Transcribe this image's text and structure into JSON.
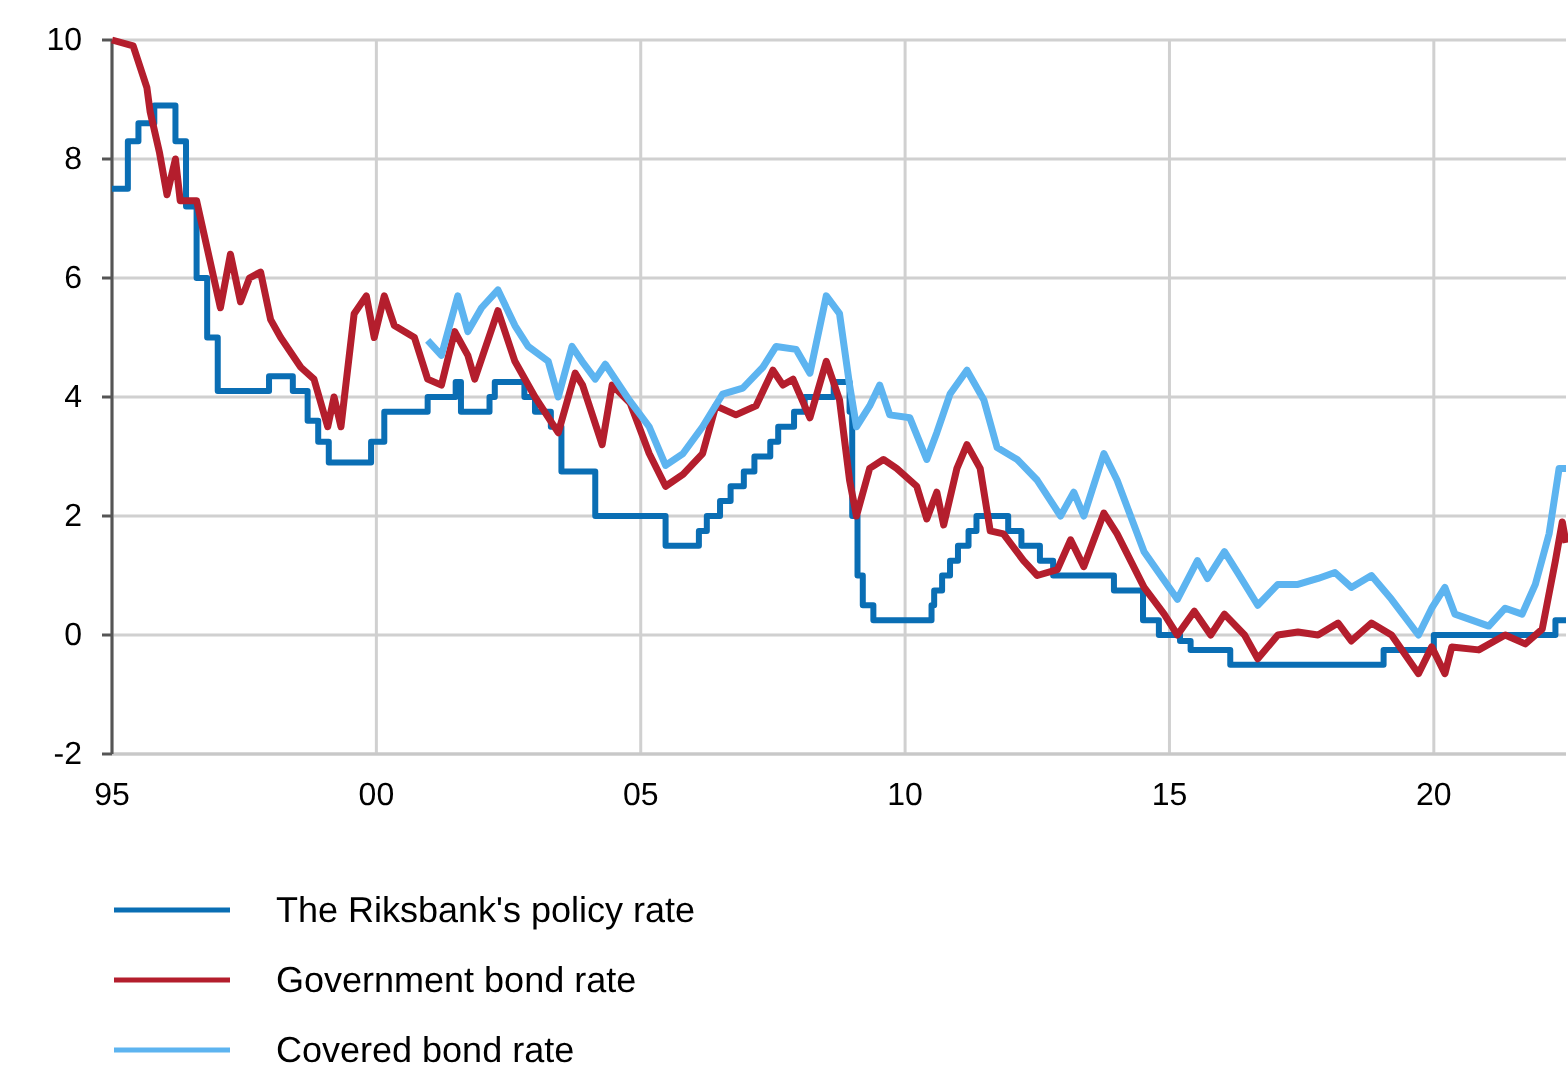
{
  "chart_data": {
    "type": "line",
    "xlim": [
      1995,
      2022.5
    ],
    "xticks": [
      {
        "value": 1995,
        "label": "95"
      },
      {
        "value": 2000,
        "label": "00"
      },
      {
        "value": 2005,
        "label": "05"
      },
      {
        "value": 2010,
        "label": "10"
      },
      {
        "value": 2015,
        "label": "15"
      },
      {
        "value": 2020,
        "label": "20"
      }
    ],
    "ylim": [
      -2,
      10
    ],
    "yticks": [
      -2,
      0,
      2,
      4,
      6,
      8,
      10
    ],
    "grid": true,
    "legend": "bottom",
    "line_style": "solid",
    "series": [
      {
        "name": "The Riksbank's policy rate",
        "type": "step",
        "color": "#0a6eb4",
        "x": [
          1995.0,
          1995.3,
          1995.5,
          1995.8,
          1996.0,
          1996.2,
          1996.4,
          1996.6,
          1996.8,
          1997.0,
          1997.97,
          1998.42,
          1998.7,
          1998.9,
          1999.1,
          1999.24,
          1999.9,
          2000.15,
          2000.97,
          2001.5,
          2001.6,
          2002.14,
          2002.24,
          2002.8,
          2003.0,
          2003.3,
          2003.5,
          2004.14,
          2005.47,
          2006.1,
          2006.25,
          2006.5,
          2006.7,
          2006.95,
          2007.15,
          2007.45,
          2007.6,
          2007.9,
          2008.1,
          2008.65,
          2008.95,
          2009.0,
          2009.1,
          2009.2,
          2009.4,
          2010.5,
          2010.55,
          2010.7,
          2010.85,
          2011.0,
          2011.2,
          2011.35,
          2011.55,
          2011.95,
          2012.2,
          2012.55,
          2012.8,
          2013.95,
          2014.5,
          2014.8,
          2015.2,
          2015.4,
          2016.15,
          2019.05,
          2020.0,
          2022.3,
          2022.5
        ],
        "values": [
          7.5,
          8.3,
          8.6,
          8.9,
          8.9,
          8.3,
          7.2,
          6.0,
          5.0,
          4.1,
          4.35,
          4.1,
          3.6,
          3.25,
          2.9,
          2.9,
          3.25,
          3.75,
          4.0,
          4.25,
          3.75,
          4.0,
          4.25,
          4.0,
          3.75,
          3.5,
          2.75,
          2.0,
          1.5,
          1.75,
          2.0,
          2.25,
          2.5,
          2.75,
          3.0,
          3.25,
          3.5,
          3.75,
          4.0,
          4.25,
          3.75,
          2.0,
          1.0,
          0.5,
          0.25,
          0.5,
          0.75,
          1.0,
          1.25,
          1.5,
          1.75,
          2.0,
          2.0,
          1.75,
          1.5,
          1.25,
          1.0,
          0.75,
          0.25,
          0.0,
          -0.1,
          -0.25,
          -0.5,
          -0.25,
          0.0,
          0.25,
          0.25
        ]
      },
      {
        "name": "Government bond rate",
        "color": "#b41e2d",
        "x": [
          1995.0,
          1995.4,
          1995.66,
          1995.72,
          1995.9,
          1996.04,
          1996.2,
          1996.29,
          1996.6,
          1996.8,
          1997.05,
          1997.24,
          1997.43,
          1997.6,
          1997.81,
          1998.0,
          1998.19,
          1998.57,
          1998.82,
          1999.08,
          1999.2,
          1999.33,
          1999.58,
          1999.81,
          1999.96,
          2000.15,
          2000.34,
          2000.72,
          2000.97,
          2001.23,
          2001.48,
          2001.73,
          2001.86,
          2002.3,
          2002.62,
          2003.0,
          2003.44,
          2003.76,
          2003.9,
          2004.27,
          2004.46,
          2004.8,
          2005.16,
          2005.47,
          2005.8,
          2006.17,
          2006.42,
          2006.8,
          2007.18,
          2007.5,
          2007.69,
          2007.88,
          2008.2,
          2008.51,
          2008.76,
          2008.95,
          2009.08,
          2009.33,
          2009.59,
          2009.84,
          2010.22,
          2010.41,
          2010.6,
          2010.73,
          2010.98,
          2011.17,
          2011.42,
          2011.61,
          2011.86,
          2012.24,
          2012.5,
          2012.88,
          2013.13,
          2013.38,
          2013.76,
          2014.01,
          2014.52,
          2014.9,
          2015.15,
          2015.47,
          2015.78,
          2016.04,
          2016.42,
          2016.67,
          2017.05,
          2017.43,
          2017.81,
          2018.19,
          2018.44,
          2018.82,
          2019.2,
          2019.71,
          2019.96,
          2020.21,
          2020.34,
          2020.85,
          2021.35,
          2021.73,
          2022.05,
          2022.3,
          2022.43,
          2022.5
        ],
        "values": [
          10.0,
          9.9,
          9.2,
          8.8,
          8.1,
          7.4,
          8.0,
          7.3,
          7.3,
          6.5,
          5.5,
          6.4,
          5.6,
          6.0,
          6.1,
          5.3,
          5.0,
          4.5,
          4.3,
          3.5,
          4.0,
          3.5,
          5.4,
          5.7,
          5.0,
          5.7,
          5.2,
          5.0,
          4.3,
          4.2,
          5.1,
          4.7,
          4.3,
          5.45,
          4.6,
          4.0,
          3.4,
          4.4,
          4.2,
          3.2,
          4.2,
          3.9,
          3.05,
          2.5,
          2.7,
          3.05,
          3.85,
          3.7,
          3.85,
          4.45,
          4.2,
          4.3,
          3.65,
          4.6,
          3.95,
          2.6,
          2.0,
          2.8,
          2.95,
          2.8,
          2.5,
          1.95,
          2.4,
          1.85,
          2.8,
          3.2,
          2.8,
          1.75,
          1.7,
          1.25,
          1.0,
          1.1,
          1.6,
          1.15,
          2.05,
          1.7,
          0.8,
          0.35,
          0.0,
          0.4,
          0.0,
          0.35,
          0.0,
          -0.4,
          0.0,
          0.05,
          0.0,
          0.2,
          -0.1,
          0.2,
          0.0,
          -0.65,
          -0.2,
          -0.65,
          -0.2,
          -0.25,
          0.0,
          -0.15,
          0.1,
          1.25,
          1.9,
          1.55
        ]
      },
      {
        "name": "Covered bond rate",
        "color": "#5db4f0",
        "x": [
          2000.97,
          2001.23,
          2001.54,
          2001.73,
          2001.99,
          2002.3,
          2002.62,
          2002.87,
          2003.25,
          2003.44,
          2003.7,
          2003.89,
          2004.14,
          2004.33,
          2004.78,
          2005.16,
          2005.47,
          2005.8,
          2006.17,
          2006.55,
          2006.93,
          2007.31,
          2007.56,
          2007.94,
          2008.2,
          2008.51,
          2008.76,
          2008.95,
          2009.08,
          2009.33,
          2009.52,
          2009.71,
          2010.09,
          2010.41,
          2010.6,
          2010.85,
          2011.17,
          2011.49,
          2011.74,
          2012.12,
          2012.5,
          2012.94,
          2013.19,
          2013.38,
          2013.76,
          2014.01,
          2014.52,
          2015.15,
          2015.53,
          2015.72,
          2016.04,
          2016.29,
          2016.67,
          2017.05,
          2017.43,
          2017.81,
          2018.13,
          2018.44,
          2018.82,
          2019.2,
          2019.71,
          2019.96,
          2020.21,
          2020.4,
          2020.72,
          2021.04,
          2021.35,
          2021.67,
          2021.92,
          2022.18,
          2022.37,
          2022.5
        ],
        "values": [
          4.95,
          4.7,
          5.7,
          5.1,
          5.5,
          5.8,
          5.2,
          4.85,
          4.6,
          4.0,
          4.85,
          4.6,
          4.3,
          4.55,
          3.95,
          3.5,
          2.85,
          3.05,
          3.5,
          4.05,
          4.15,
          4.5,
          4.85,
          4.8,
          4.4,
          5.7,
          5.4,
          4.2,
          3.5,
          3.85,
          4.2,
          3.7,
          3.65,
          2.95,
          3.4,
          4.05,
          4.45,
          3.95,
          3.15,
          2.95,
          2.6,
          2.0,
          2.4,
          2.0,
          3.05,
          2.6,
          1.4,
          0.6,
          1.25,
          0.95,
          1.4,
          1.05,
          0.5,
          0.85,
          0.85,
          0.95,
          1.05,
          0.8,
          1.0,
          0.6,
          0.0,
          0.45,
          0.8,
          0.35,
          0.25,
          0.15,
          0.45,
          0.35,
          0.85,
          1.7,
          2.8,
          2.8
        ]
      }
    ]
  }
}
